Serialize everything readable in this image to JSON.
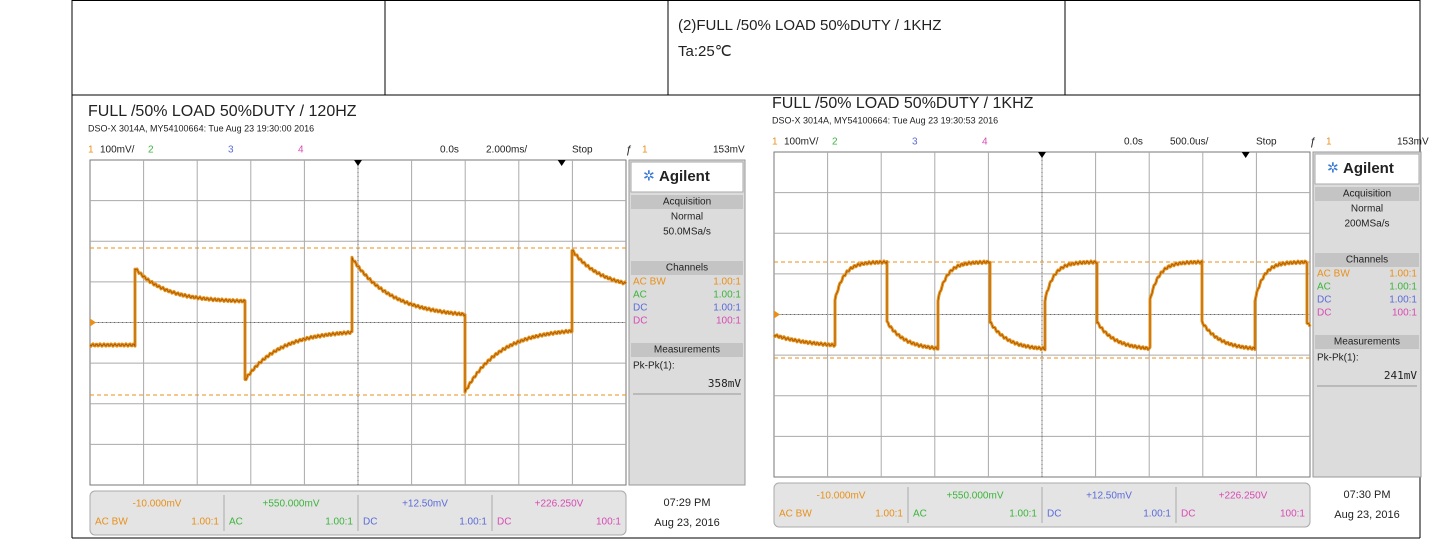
{
  "header": {
    "line1": "(2)FULL /50% LOAD 50%DUTY / 1KHZ",
    "line2": "Ta:25℃"
  },
  "panels": [
    {
      "title": "FULL /50% LOAD 50%DUTY / 120HZ",
      "info": "DSO-X 3014A, MY54100664: Tue Aug 23 19:30:00 2016",
      "topbar": {
        "ch1": "1",
        "scale": "100mV/",
        "ch2": "2",
        "ch3": "3",
        "ch4": "4",
        "delay": "0.0s",
        "timebase": "2.000ms/",
        "status": "Stop",
        "trig_ch": "1",
        "trig_level": "153mV"
      },
      "brand": "Agilent",
      "acquisition": {
        "heading": "Acquisition",
        "mode": "Normal",
        "rate": "50.0MSa/s"
      },
      "channels": {
        "heading": "Channels",
        "rows": [
          [
            "AC BW",
            "1.00:1"
          ],
          [
            "AC",
            "1.00:1"
          ],
          [
            "DC",
            "1.00:1"
          ],
          [
            "DC",
            "100:1"
          ]
        ]
      },
      "measurements": {
        "heading": "Measurements",
        "label": "Pk-Pk(1):",
        "value": "358mV"
      },
      "bottom": [
        {
          "offset": "-10.000mV",
          "coupling": "AC  BW",
          "ratio": "1.00:1"
        },
        {
          "offset": "+550.000mV",
          "coupling": "AC",
          "ratio": "1.00:1"
        },
        {
          "offset": "+12.50mV",
          "coupling": "DC",
          "ratio": "1.00:1"
        },
        {
          "offset": "+226.250V",
          "coupling": "DC",
          "ratio": "100:1"
        }
      ],
      "time": "07:29 PM",
      "date": "Aug 23, 2016"
    },
    {
      "title": "FULL /50% LOAD 50%DUTY / 1KHZ",
      "info": "DSO-X 3014A, MY54100664: Tue Aug 23 19:30:53 2016",
      "topbar": {
        "ch1": "1",
        "scale": "100mV/",
        "ch2": "2",
        "ch3": "3",
        "ch4": "4",
        "delay": "0.0s",
        "timebase": "500.0us/",
        "status": "Stop",
        "trig_ch": "1",
        "trig_level": "153mV"
      },
      "brand": "Agilent",
      "acquisition": {
        "heading": "Acquisition",
        "mode": "Normal",
        "rate": "200MSa/s"
      },
      "channels": {
        "heading": "Channels",
        "rows": [
          [
            "AC BW",
            "1.00:1"
          ],
          [
            "AC",
            "1.00:1"
          ],
          [
            "DC",
            "1.00:1"
          ],
          [
            "DC",
            "100:1"
          ]
        ]
      },
      "measurements": {
        "heading": "Measurements",
        "label": "Pk-Pk(1):",
        "value": "241mV"
      },
      "bottom": [
        {
          "offset": "-10.000mV",
          "coupling": "AC  BW",
          "ratio": "1.00:1"
        },
        {
          "offset": "+550.000mV",
          "coupling": "AC",
          "ratio": "1.00:1"
        },
        {
          "offset": "+12.50mV",
          "coupling": "DC",
          "ratio": "1.00:1"
        },
        {
          "offset": "+226.250V",
          "coupling": "DC",
          "ratio": "100:1"
        }
      ],
      "time": "07:30 PM",
      "date": "Aug 23, 2016"
    }
  ]
}
